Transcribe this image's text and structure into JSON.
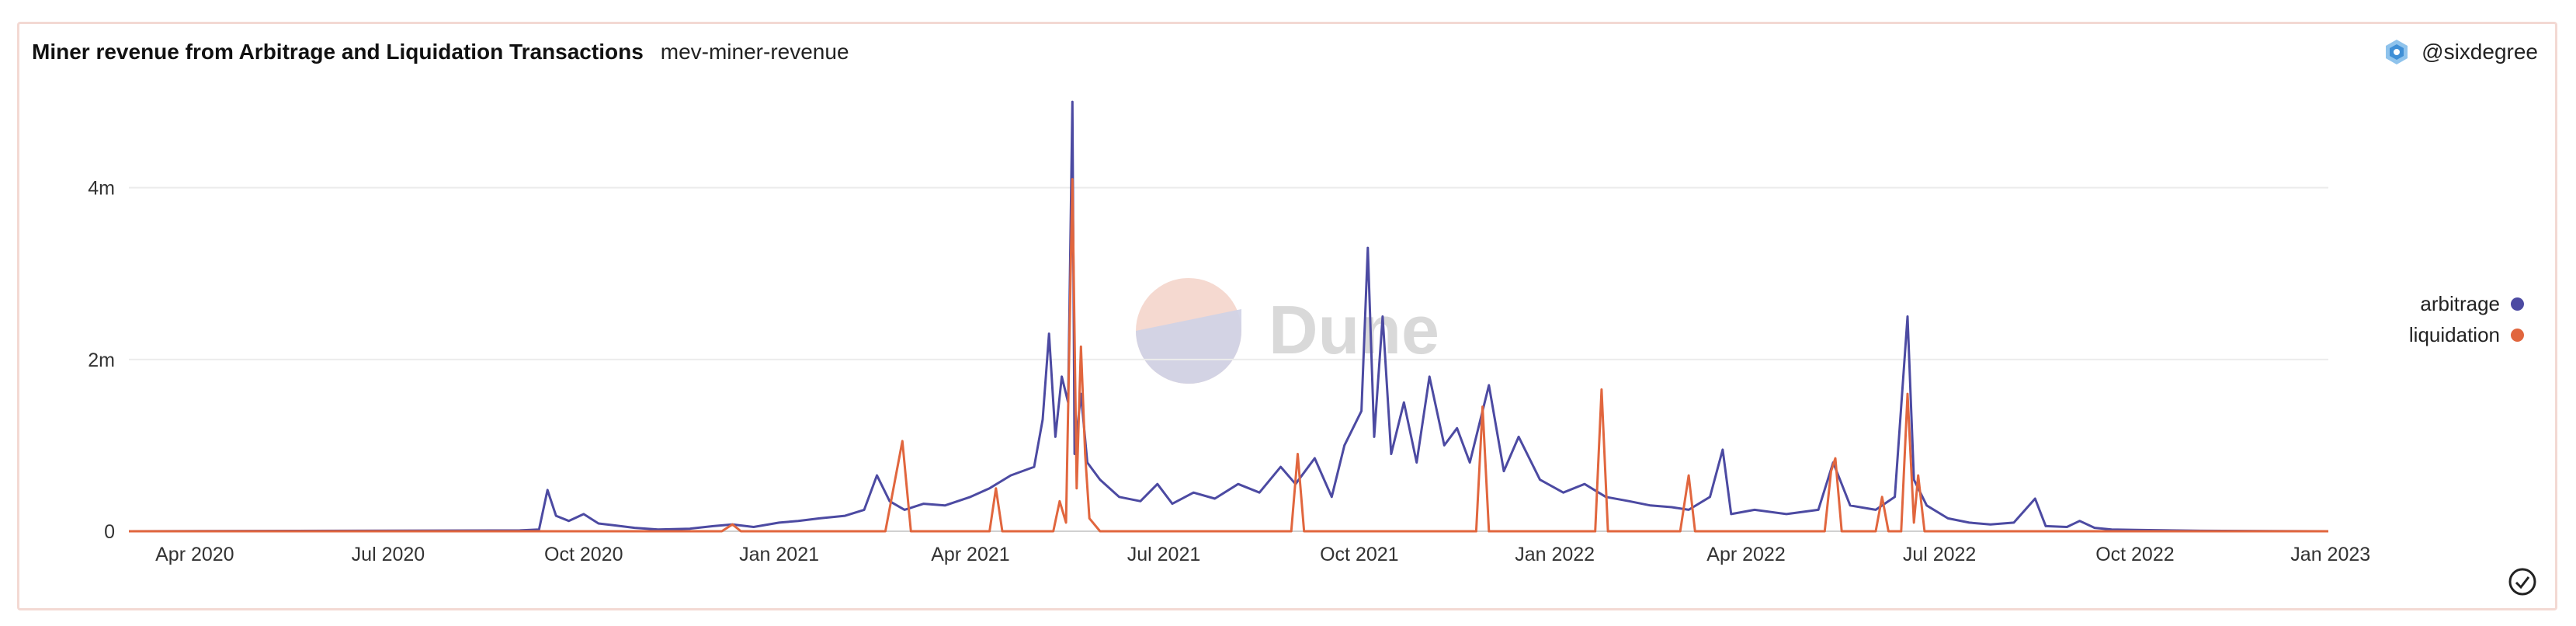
{
  "header": {
    "title": "Miner revenue from Arbitrage and Liquidation Transactions",
    "subtitle": "mev-miner-revenue"
  },
  "author": {
    "handle": "@sixdegree",
    "icon": "sixdegree-logo-icon"
  },
  "watermark": {
    "text": "Dune"
  },
  "colors": {
    "arbitrage": "#4c4aa2",
    "liquidation": "#e1663e",
    "grid": "#ececec",
    "border": "#f3d9d3"
  },
  "legend": [
    {
      "label": "arbitrage",
      "color": "#4c4aa2"
    },
    {
      "label": "liquidation",
      "color": "#e1663e"
    }
  ],
  "chart_data": {
    "type": "line",
    "title": "Miner revenue from Arbitrage and Liquidation Transactions",
    "x_type": "date",
    "xlim": [
      "2020-03-01",
      "2022-12-31"
    ],
    "ylim": [
      0,
      5100000
    ],
    "yticks": [
      0,
      2000000,
      4000000
    ],
    "ytick_labels": [
      "0",
      "2m",
      "4m"
    ],
    "xticks": [
      "2020-04-01",
      "2020-07-01",
      "2020-10-01",
      "2021-01-01",
      "2021-04-01",
      "2021-07-01",
      "2021-10-01",
      "2022-01-01",
      "2022-04-01",
      "2022-07-01",
      "2022-10-01",
      "2023-01-01"
    ],
    "xtick_labels": [
      "Apr 2020",
      "Jul 2020",
      "Oct 2020",
      "Jan 2021",
      "Apr 2021",
      "Jul 2021",
      "Oct 2021",
      "Jan 2022",
      "Apr 2022",
      "Jul 2022",
      "Oct 2022",
      "Jan 2023"
    ],
    "grid": "horizontal",
    "legend_position": "right",
    "series": [
      {
        "name": "arbitrage",
        "color": "#4c4aa2",
        "points": [
          [
            "2020-03-01",
            0
          ],
          [
            "2020-09-01",
            10000
          ],
          [
            "2020-09-10",
            20000
          ],
          [
            "2020-09-14",
            480000
          ],
          [
            "2020-09-18",
            180000
          ],
          [
            "2020-09-24",
            120000
          ],
          [
            "2020-10-01",
            200000
          ],
          [
            "2020-10-08",
            90000
          ],
          [
            "2020-10-15",
            70000
          ],
          [
            "2020-10-25",
            40000
          ],
          [
            "2020-11-05",
            20000
          ],
          [
            "2020-11-20",
            30000
          ],
          [
            "2020-12-01",
            60000
          ],
          [
            "2020-12-10",
            80000
          ],
          [
            "2020-12-20",
            50000
          ],
          [
            "2021-01-01",
            100000
          ],
          [
            "2021-01-10",
            120000
          ],
          [
            "2021-01-20",
            150000
          ],
          [
            "2021-02-01",
            180000
          ],
          [
            "2021-02-10",
            250000
          ],
          [
            "2021-02-16",
            650000
          ],
          [
            "2021-02-22",
            350000
          ],
          [
            "2021-03-01",
            250000
          ],
          [
            "2021-03-10",
            320000
          ],
          [
            "2021-03-20",
            300000
          ],
          [
            "2021-04-01",
            400000
          ],
          [
            "2021-04-10",
            500000
          ],
          [
            "2021-04-20",
            650000
          ],
          [
            "2021-05-01",
            750000
          ],
          [
            "2021-05-05",
            1300000
          ],
          [
            "2021-05-08",
            2300000
          ],
          [
            "2021-05-11",
            1100000
          ],
          [
            "2021-05-14",
            1800000
          ],
          [
            "2021-05-17",
            1500000
          ],
          [
            "2021-05-19",
            5000000
          ],
          [
            "2021-05-20",
            900000
          ],
          [
            "2021-05-23",
            1600000
          ],
          [
            "2021-05-26",
            800000
          ],
          [
            "2021-06-01",
            600000
          ],
          [
            "2021-06-10",
            400000
          ],
          [
            "2021-06-20",
            350000
          ],
          [
            "2021-06-28",
            550000
          ],
          [
            "2021-07-05",
            320000
          ],
          [
            "2021-07-15",
            450000
          ],
          [
            "2021-07-25",
            380000
          ],
          [
            "2021-08-05",
            550000
          ],
          [
            "2021-08-15",
            450000
          ],
          [
            "2021-08-25",
            750000
          ],
          [
            "2021-09-01",
            550000
          ],
          [
            "2021-09-10",
            850000
          ],
          [
            "2021-09-18",
            400000
          ],
          [
            "2021-09-24",
            1000000
          ],
          [
            "2021-10-02",
            1400000
          ],
          [
            "2021-10-05",
            3300000
          ],
          [
            "2021-10-08",
            1100000
          ],
          [
            "2021-10-12",
            2500000
          ],
          [
            "2021-10-16",
            900000
          ],
          [
            "2021-10-22",
            1500000
          ],
          [
            "2021-10-28",
            800000
          ],
          [
            "2021-11-03",
            1800000
          ],
          [
            "2021-11-10",
            1000000
          ],
          [
            "2021-11-16",
            1200000
          ],
          [
            "2021-11-22",
            800000
          ],
          [
            "2021-12-01",
            1700000
          ],
          [
            "2021-12-08",
            700000
          ],
          [
            "2021-12-15",
            1100000
          ],
          [
            "2021-12-25",
            600000
          ],
          [
            "2022-01-05",
            450000
          ],
          [
            "2022-01-15",
            550000
          ],
          [
            "2022-01-25",
            400000
          ],
          [
            "2022-02-05",
            350000
          ],
          [
            "2022-02-15",
            300000
          ],
          [
            "2022-02-25",
            280000
          ],
          [
            "2022-03-05",
            250000
          ],
          [
            "2022-03-15",
            400000
          ],
          [
            "2022-03-21",
            950000
          ],
          [
            "2022-03-25",
            200000
          ],
          [
            "2022-04-05",
            250000
          ],
          [
            "2022-04-20",
            200000
          ],
          [
            "2022-05-05",
            250000
          ],
          [
            "2022-05-12",
            800000
          ],
          [
            "2022-05-20",
            300000
          ],
          [
            "2022-06-01",
            250000
          ],
          [
            "2022-06-10",
            400000
          ],
          [
            "2022-06-16",
            2500000
          ],
          [
            "2022-06-19",
            600000
          ],
          [
            "2022-06-25",
            300000
          ],
          [
            "2022-07-05",
            150000
          ],
          [
            "2022-07-15",
            100000
          ],
          [
            "2022-07-25",
            80000
          ],
          [
            "2022-08-05",
            100000
          ],
          [
            "2022-08-15",
            380000
          ],
          [
            "2022-08-20",
            60000
          ],
          [
            "2022-08-30",
            50000
          ],
          [
            "2022-09-05",
            120000
          ],
          [
            "2022-09-12",
            40000
          ],
          [
            "2022-09-20",
            20000
          ],
          [
            "2022-10-01",
            15000
          ],
          [
            "2022-11-01",
            5000
          ],
          [
            "2022-12-31",
            0
          ]
        ]
      },
      {
        "name": "liquidation",
        "color": "#e1663e",
        "points": [
          [
            "2020-03-01",
            0
          ],
          [
            "2020-12-05",
            0
          ],
          [
            "2020-12-10",
            80000
          ],
          [
            "2020-12-14",
            0
          ],
          [
            "2021-02-20",
            0
          ],
          [
            "2021-02-28",
            1050000
          ],
          [
            "2021-03-04",
            0
          ],
          [
            "2021-04-10",
            0
          ],
          [
            "2021-04-13",
            500000
          ],
          [
            "2021-04-16",
            0
          ],
          [
            "2021-05-10",
            0
          ],
          [
            "2021-05-13",
            350000
          ],
          [
            "2021-05-16",
            100000
          ],
          [
            "2021-05-19",
            4100000
          ],
          [
            "2021-05-21",
            500000
          ],
          [
            "2021-05-23",
            2150000
          ],
          [
            "2021-05-25",
            900000
          ],
          [
            "2021-05-27",
            150000
          ],
          [
            "2021-06-01",
            0
          ],
          [
            "2021-08-30",
            0
          ],
          [
            "2021-09-02",
            900000
          ],
          [
            "2021-09-05",
            0
          ],
          [
            "2021-11-25",
            0
          ],
          [
            "2021-11-28",
            1450000
          ],
          [
            "2021-12-01",
            0
          ],
          [
            "2022-01-20",
            0
          ],
          [
            "2022-01-23",
            1650000
          ],
          [
            "2022-01-26",
            0
          ],
          [
            "2022-03-01",
            0
          ],
          [
            "2022-03-05",
            650000
          ],
          [
            "2022-03-08",
            0
          ],
          [
            "2022-05-08",
            0
          ],
          [
            "2022-05-11",
            700000
          ],
          [
            "2022-05-13",
            850000
          ],
          [
            "2022-05-16",
            0
          ],
          [
            "2022-06-01",
            0
          ],
          [
            "2022-06-04",
            400000
          ],
          [
            "2022-06-07",
            0
          ],
          [
            "2022-06-13",
            0
          ],
          [
            "2022-06-16",
            1600000
          ],
          [
            "2022-06-19",
            100000
          ],
          [
            "2022-06-21",
            650000
          ],
          [
            "2022-06-24",
            0
          ],
          [
            "2022-12-31",
            0
          ]
        ]
      }
    ]
  }
}
